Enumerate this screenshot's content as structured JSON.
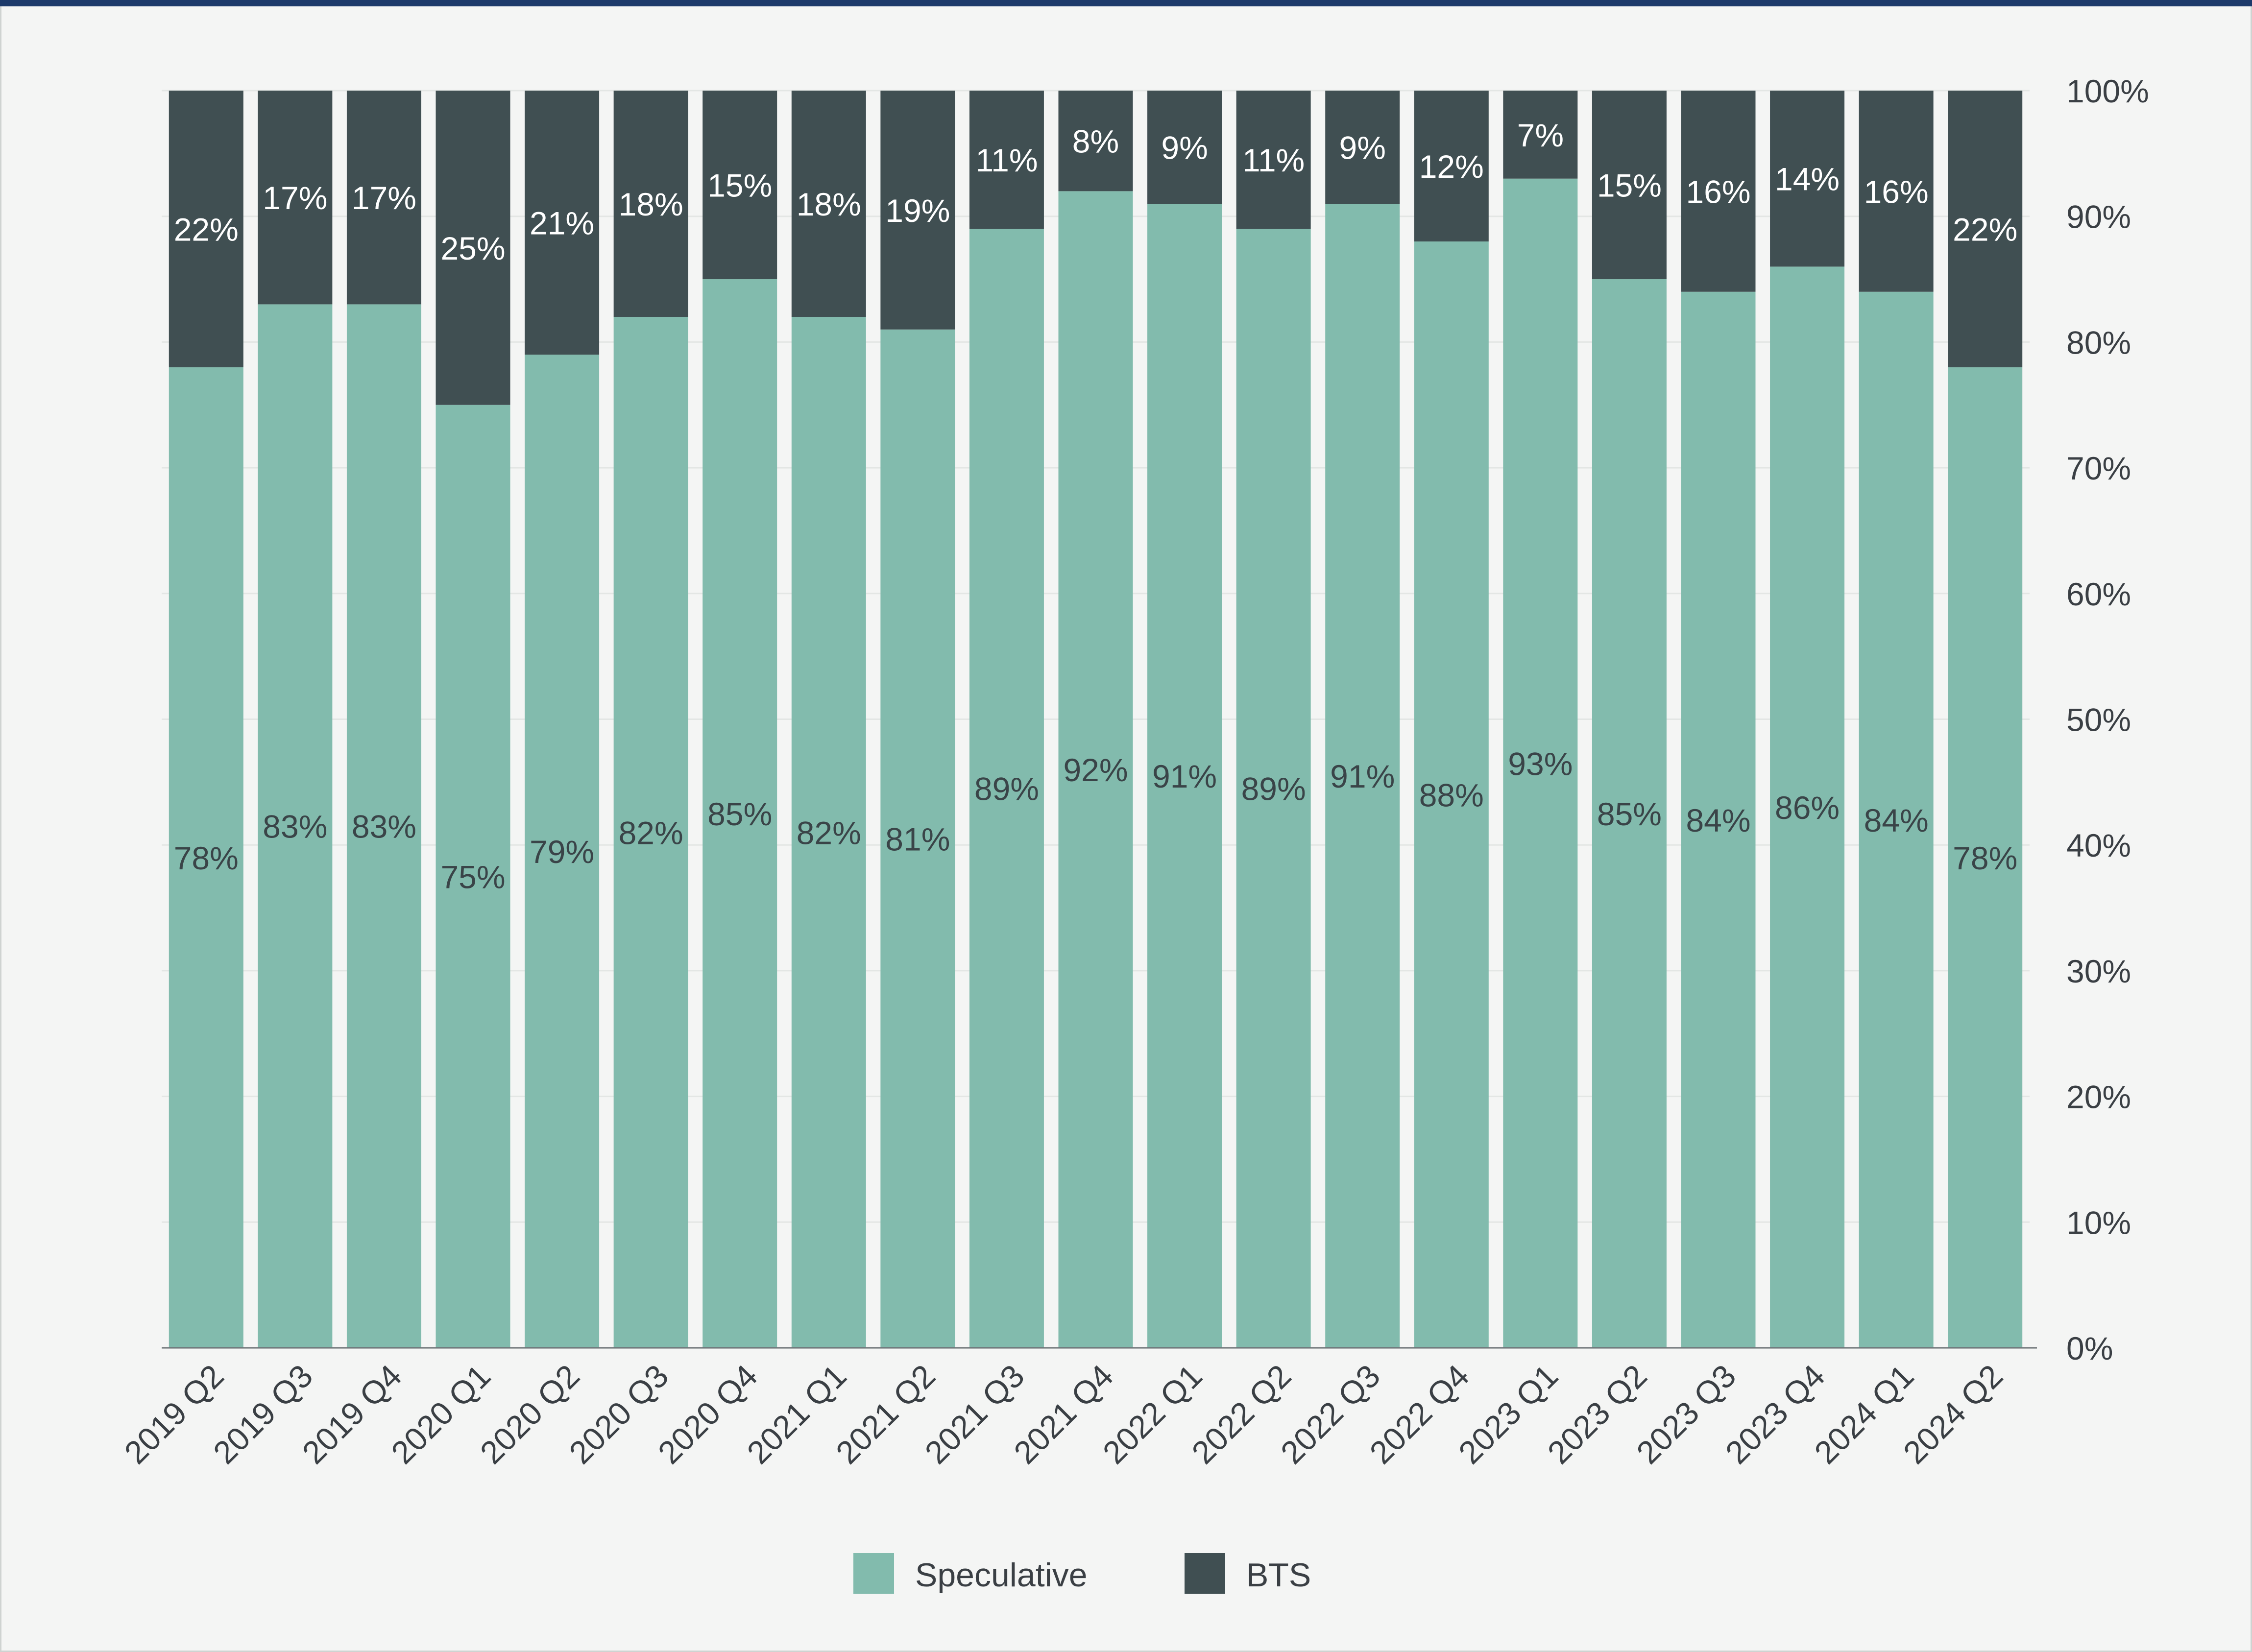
{
  "chart_data": {
    "type": "bar",
    "stacked": true,
    "categories": [
      "2019 Q2",
      "2019 Q3",
      "2019 Q4",
      "2020 Q1",
      "2020 Q2",
      "2020 Q3",
      "2020 Q4",
      "2021 Q1",
      "2021 Q2",
      "2021 Q3",
      "2021 Q4",
      "2022 Q1",
      "2022 Q2",
      "2022 Q3",
      "2022 Q4",
      "2023 Q1",
      "2023 Q2",
      "2023 Q3",
      "2023 Q4",
      "2024 Q1",
      "2024 Q2"
    ],
    "series": [
      {
        "name": "Speculative",
        "color": "#82bbad",
        "values": [
          78,
          83,
          83,
          75,
          79,
          82,
          85,
          82,
          81,
          89,
          92,
          91,
          89,
          91,
          88,
          93,
          85,
          84,
          86,
          84,
          78
        ],
        "labels": [
          "78%",
          "83%",
          "83%",
          "75%",
          "79%",
          "82%",
          "85%",
          "82%",
          "81%",
          "89%",
          "92%",
          "91%",
          "89%",
          "91%",
          "88%",
          "93%",
          "85%",
          "84%",
          "86%",
          "84%",
          "78%"
        ]
      },
      {
        "name": "BTS",
        "color": "#404f52",
        "values": [
          22,
          17,
          17,
          25,
          21,
          18,
          15,
          18,
          19,
          11,
          8,
          9,
          11,
          9,
          12,
          7,
          15,
          16,
          14,
          16,
          22
        ],
        "labels": [
          "22%",
          "17%",
          "17%",
          "25%",
          "21%",
          "18%",
          "15%",
          "18%",
          "19%",
          "11%",
          "8%",
          "9%",
          "11%",
          "9%",
          "12%",
          "7%",
          "15%",
          "16%",
          "14%",
          "16%",
          "22%"
        ]
      }
    ],
    "ylim": [
      0,
      100
    ],
    "yticks": [
      0,
      10,
      20,
      30,
      40,
      50,
      60,
      70,
      80,
      90,
      100
    ],
    "ytick_labels": [
      "0%",
      "10%",
      "20%",
      "30%",
      "40%",
      "50%",
      "60%",
      "70%",
      "80%",
      "90%",
      "100%"
    ],
    "y_axis_side": "right",
    "grid": true,
    "legend": "bottom-center",
    "title": "",
    "xlabel": "",
    "ylabel": ""
  }
}
